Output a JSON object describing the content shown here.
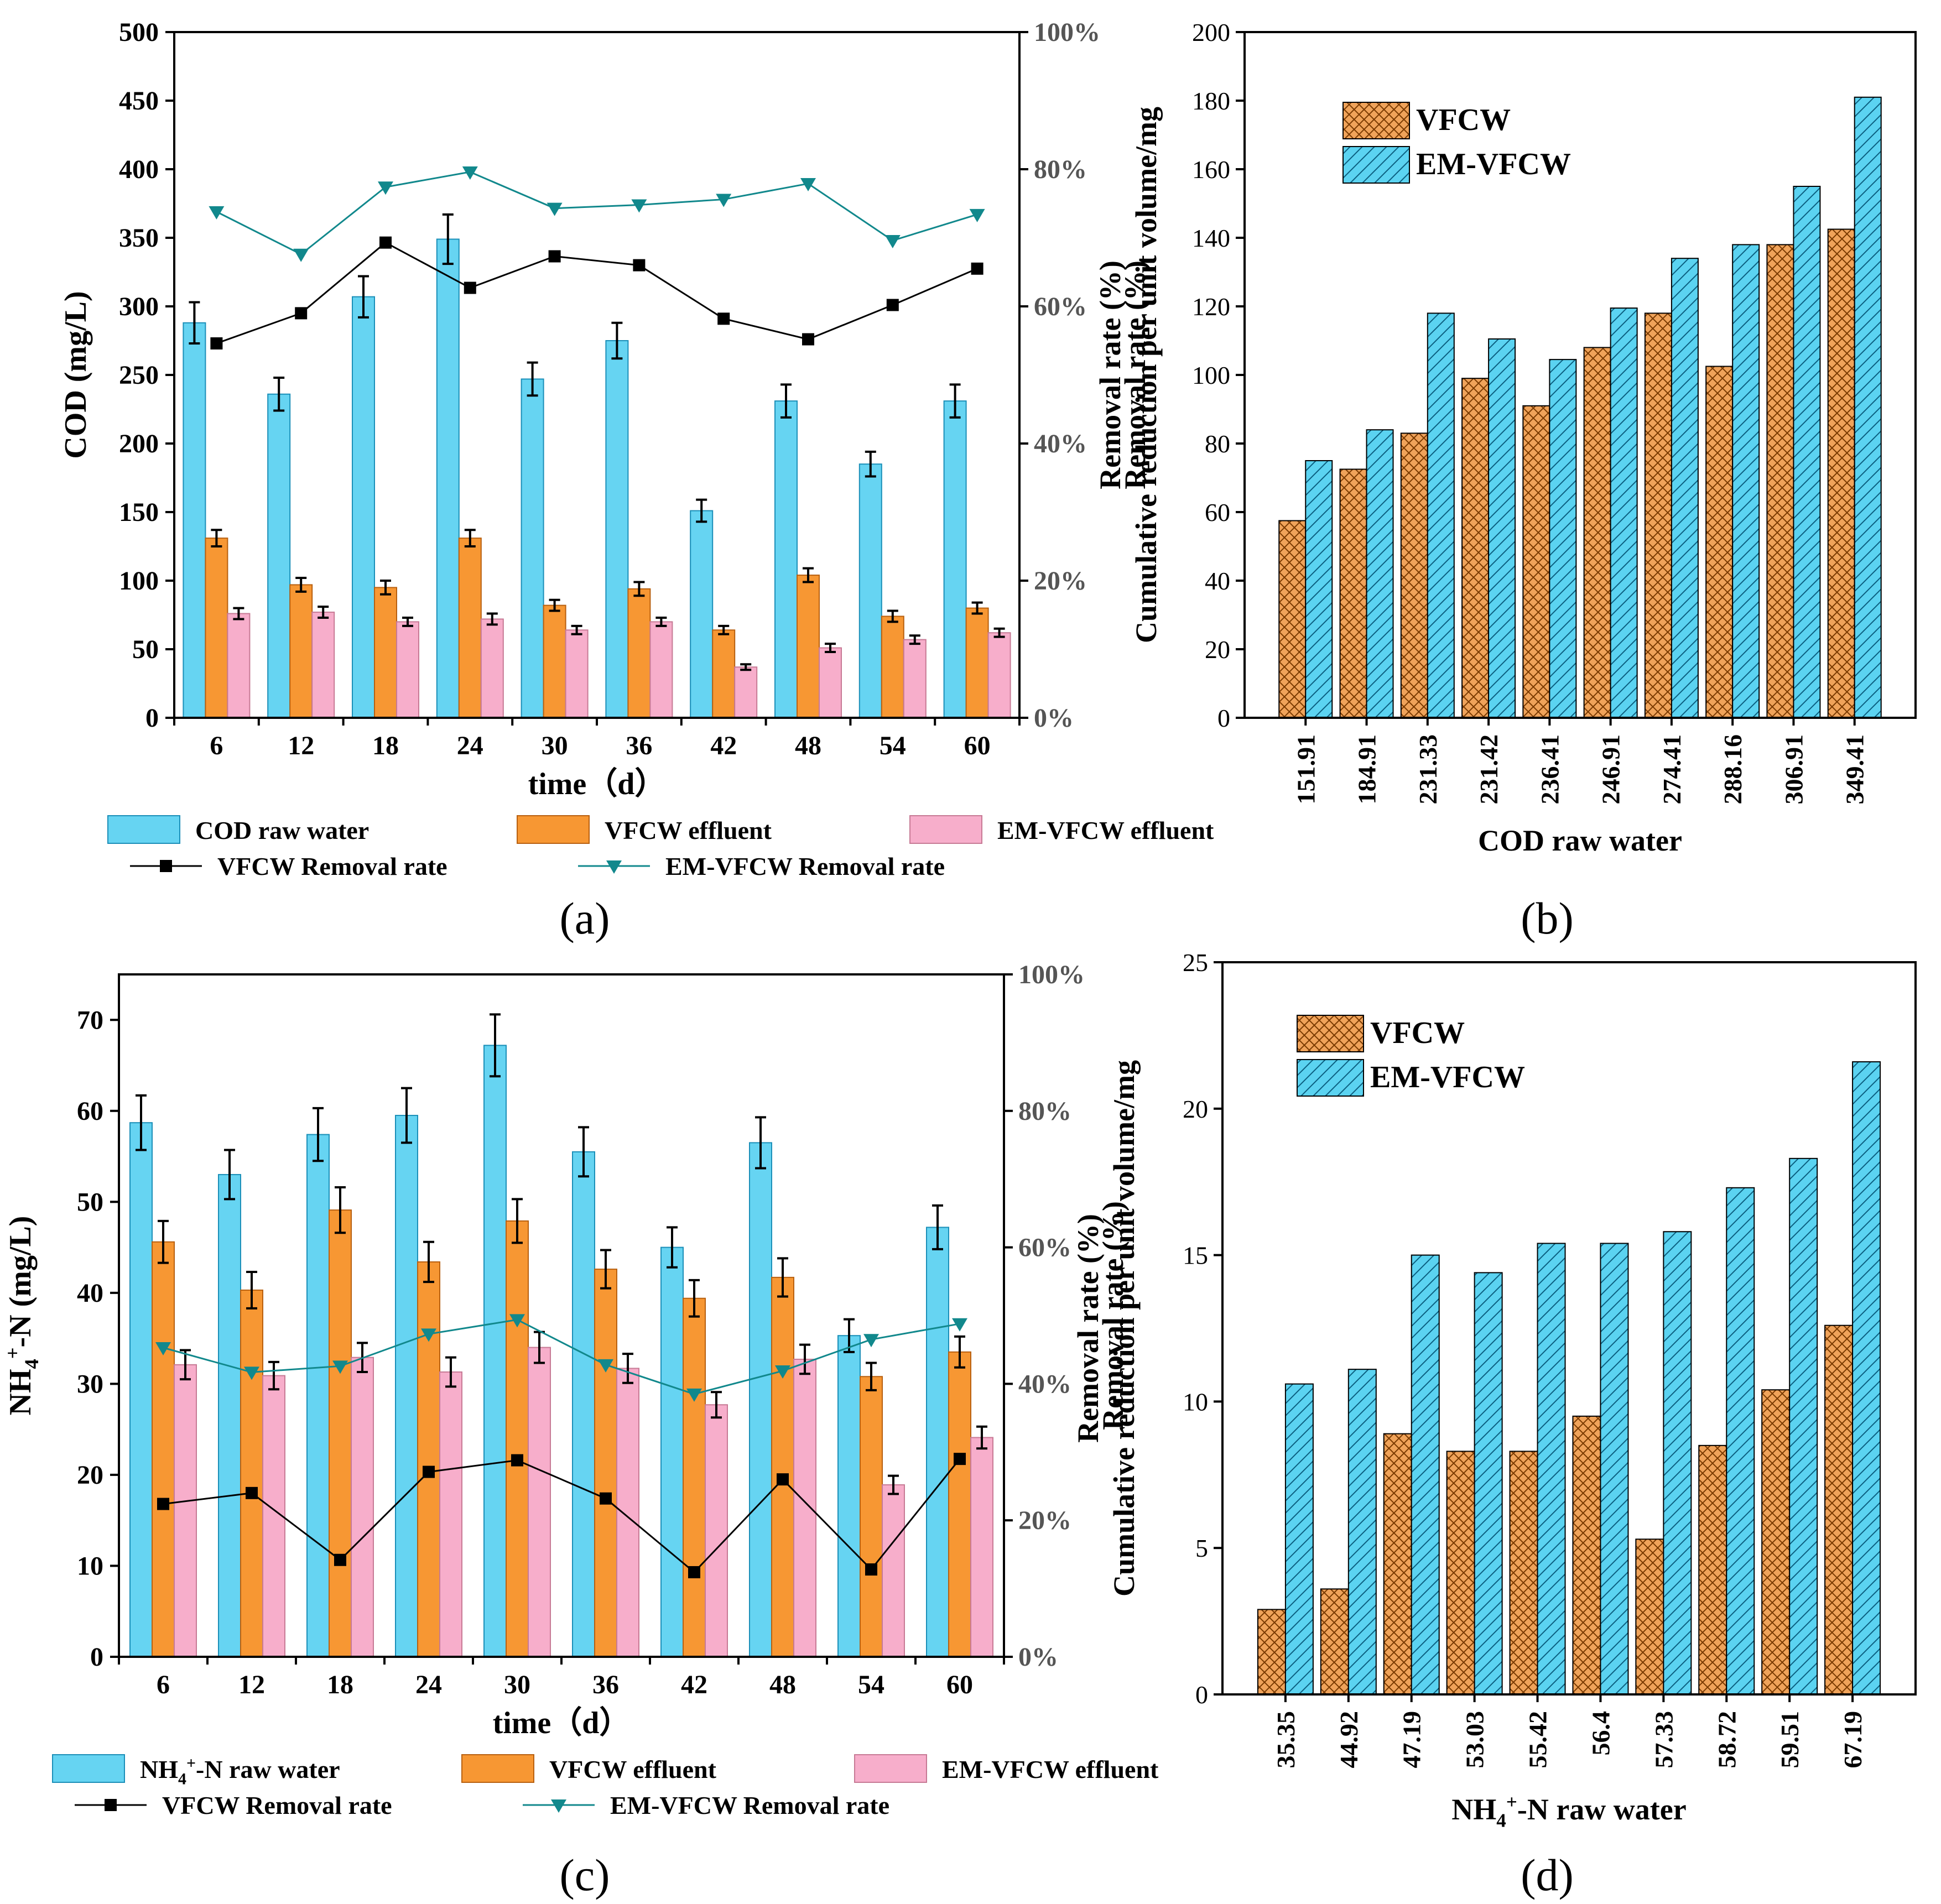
{
  "colors": {
    "raw": "#66D4F2",
    "raw_stroke": "#1B8FB8",
    "vfcw": "#F79733",
    "vfcw_stroke": "#B86010",
    "em": "#F7AECB",
    "em_stroke": "#C77A95",
    "vfcw_rate": "#000000",
    "em_rate": "#11888C",
    "hatch_v_fill": "#F0A35A",
    "hatch_v_line": "#7A3A00",
    "hatch_e_fill": "#5BD3F1",
    "hatch_e_line": "#0B5F80",
    "axis": "#000000",
    "right_axis": "#555555"
  },
  "panels": {
    "a": "(a)",
    "b": "(b)",
    "c": "(c)",
    "d": "(d)"
  },
  "chart_data": [
    {
      "id": "a",
      "type": "bar",
      "xlabel": "time（d）",
      "ylabel": "COD (mg/L)",
      "y2label": "Removal rate (%)",
      "categories": [
        "6",
        "12",
        "18",
        "24",
        "30",
        "36",
        "42",
        "48",
        "54",
        "60"
      ],
      "ylim": [
        0,
        500
      ],
      "yticks": [
        "0",
        "50",
        "100",
        "150",
        "200",
        "250",
        "300",
        "350",
        "400",
        "450",
        "500"
      ],
      "y2lim": [
        0,
        100
      ],
      "y2ticks": [
        "0%",
        "20%",
        "40%",
        "60%",
        "80%",
        "100%"
      ],
      "series": [
        {
          "name": "COD raw water",
          "values": [
            288,
            236,
            307,
            349,
            247,
            275,
            151,
            231,
            185,
            231
          ],
          "errors": [
            15,
            12,
            15,
            18,
            12,
            13,
            8,
            12,
            9,
            12
          ]
        },
        {
          "name": "VFCW effluent",
          "values": [
            131,
            97,
            95,
            131,
            82,
            94,
            64,
            104,
            74,
            80
          ],
          "errors": [
            6,
            5,
            5,
            6,
            4,
            5,
            3,
            5,
            4,
            4
          ]
        },
        {
          "name": "EM-VFCW effluent",
          "values": [
            76,
            77,
            70,
            72,
            64,
            70,
            37,
            51,
            57,
            62
          ],
          "errors": [
            4,
            4,
            3,
            4,
            3,
            3,
            2,
            3,
            3,
            3
          ]
        }
      ],
      "lines": [
        {
          "name": "VFCW Removal rate",
          "marker": "square",
          "values": [
            54.6,
            59,
            69.3,
            62.7,
            67.3,
            66,
            58.2,
            55.2,
            60.2,
            65.5
          ]
        },
        {
          "name": "EM-VFCW Removal rate",
          "marker": "triangle",
          "values": [
            73.8,
            67.6,
            77.4,
            79.6,
            74.3,
            74.8,
            75.6,
            77.9,
            69.6,
            73.4
          ]
        }
      ],
      "legend": "bottom"
    },
    {
      "id": "b",
      "type": "bar",
      "xlabel": "COD raw water",
      "ylabel": "Cumulative reduction per unit volume/mg",
      "y2label": "Removal rate (%)",
      "categories": [
        "151.91",
        "184.91",
        "231.33",
        "231.42",
        "236.41",
        "246.91",
        "274.41",
        "288.16",
        "306.91",
        "349.41"
      ],
      "ylim": [
        0,
        200
      ],
      "yticks": [
        "0",
        "20",
        "40",
        "60",
        "80",
        "100",
        "120",
        "140",
        "160",
        "180",
        "200"
      ],
      "series": [
        {
          "name": "VFCW",
          "values": [
            57.5,
            72.5,
            83,
            99,
            91,
            108,
            118,
            102.5,
            138,
            142.5
          ]
        },
        {
          "name": "EM-VFCW",
          "values": [
            75,
            84,
            118,
            110.5,
            104.5,
            119.5,
            134,
            138,
            155,
            181
          ]
        }
      ],
      "legend": "top-left"
    },
    {
      "id": "c",
      "type": "bar",
      "xlabel": "time（d）",
      "ylabel_main": "NH",
      "ylabel_sub": "4",
      "ylabel_sup": "+",
      "ylabel_rest": "-N (mg/L)",
      "y2label": "Removal rate (%)",
      "categories": [
        "6",
        "12",
        "18",
        "24",
        "30",
        "36",
        "42",
        "48",
        "54",
        "60"
      ],
      "ylim": [
        0,
        75
      ],
      "yticks": [
        "0",
        "10",
        "20",
        "30",
        "40",
        "50",
        "60",
        "70"
      ],
      "y2lim": [
        0,
        100
      ],
      "y2ticks": [
        "0%",
        "20%",
        "40%",
        "60%",
        "80%",
        "100%"
      ],
      "series": [
        {
          "name_main": "NH",
          "name_sub": "4",
          "name_sup": "+",
          "name_rest": "-N raw water",
          "values": [
            58.7,
            53,
            57.4,
            59.5,
            67.2,
            55.5,
            45,
            56.5,
            35.3,
            47.2
          ],
          "errors": [
            3,
            2.7,
            2.9,
            3,
            3.4,
            2.7,
            2.2,
            2.8,
            1.8,
            2.4
          ]
        },
        {
          "name": "VFCW effluent",
          "values": [
            45.6,
            40.3,
            49.1,
            43.4,
            47.9,
            42.6,
            39.4,
            41.7,
            30.8,
            33.5
          ],
          "errors": [
            2.3,
            2,
            2.5,
            2.2,
            2.4,
            2.1,
            2,
            2.1,
            1.5,
            1.7
          ]
        },
        {
          "name": "EM-VFCW effluent",
          "values": [
            32.1,
            30.9,
            32.9,
            31.3,
            34,
            31.7,
            27.7,
            32.7,
            18.9,
            24.1
          ],
          "errors": [
            1.6,
            1.5,
            1.6,
            1.6,
            1.7,
            1.6,
            1.4,
            1.6,
            1,
            1.2
          ]
        }
      ],
      "lines": [
        {
          "name": "VFCW Removal rate",
          "marker": "square",
          "values": [
            22.4,
            24,
            14.2,
            27.1,
            28.8,
            23.2,
            12.4,
            26,
            12.8,
            29
          ]
        },
        {
          "name": "EM-VFCW Removal rate",
          "marker": "triangle",
          "values": [
            45.3,
            41.7,
            42.6,
            47.3,
            49.4,
            42.8,
            38.5,
            41.9,
            46.5,
            48.8
          ]
        }
      ],
      "legend": "bottom"
    },
    {
      "id": "d",
      "type": "bar",
      "xlabel_main": "NH",
      "xlabel_sub": "4",
      "xlabel_sup": "+",
      "xlabel_rest": "-N raw water",
      "ylabel": "Cumulative reduction per unit volume/mg",
      "y2label": "Removal rate (%)",
      "categories": [
        "35.35",
        "44.92",
        "47.19",
        "53.03",
        "55.42",
        "56.4",
        "57.33",
        "58.72",
        "59.51",
        "67.19"
      ],
      "ylim": [
        0,
        25
      ],
      "yticks": [
        "0",
        "5",
        "10",
        "15",
        "20",
        "25"
      ],
      "series": [
        {
          "name": "VFCW",
          "values": [
            2.9,
            3.6,
            8.9,
            8.3,
            8.3,
            9.5,
            5.3,
            8.5,
            10.4,
            12.6
          ]
        },
        {
          "name": "EM-VFCW",
          "values": [
            10.6,
            11.1,
            15,
            14.4,
            15.4,
            15.4,
            15.8,
            17.3,
            18.3,
            21.6
          ]
        }
      ],
      "legend": "top-left"
    }
  ]
}
